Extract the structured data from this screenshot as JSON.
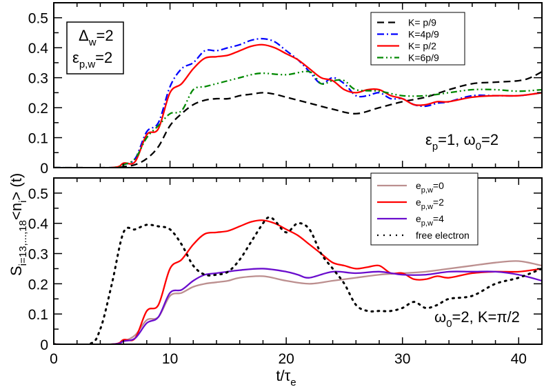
{
  "chart_data": [
    {
      "type": "line",
      "panel": "top",
      "annotation_box": {
        "line1": "Δ",
        "line1_sub": "w",
        "line1_rest": "=2",
        "line2": "ε",
        "line2_sub": "p,w",
        "line2_rest": "=2"
      },
      "annotation": {
        "part1": "ε",
        "sub1": "p",
        "part2": "=1, ω",
        "sub2": "0",
        "part3": "=2"
      },
      "xlim": [
        0,
        42
      ],
      "ylim": [
        0,
        0.55
      ],
      "yticks": [
        "0",
        "0.1",
        "0.2",
        "0.3",
        "0.4",
        "0.5"
      ],
      "legend_position": "top-right",
      "series": [
        {
          "name": "K=  p/9",
          "color": "#000000",
          "dash": "dashed",
          "x": [
            0,
            5,
            6,
            7,
            8,
            9,
            10,
            11,
            12,
            13,
            14,
            15,
            16,
            17,
            18,
            19,
            20,
            22,
            24,
            26,
            28,
            30,
            32,
            34,
            36,
            38,
            40,
            41,
            42
          ],
          "y": [
            0,
            0,
            0.003,
            0.01,
            0.03,
            0.07,
            0.14,
            0.18,
            0.21,
            0.225,
            0.23,
            0.23,
            0.24,
            0.245,
            0.25,
            0.245,
            0.235,
            0.215,
            0.195,
            0.18,
            0.2,
            0.22,
            0.235,
            0.26,
            0.28,
            0.285,
            0.29,
            0.3,
            0.32
          ]
        },
        {
          "name": "K=4p/9",
          "color": "#0000ff",
          "dash": "dash-dot",
          "x": [
            0,
            5,
            6,
            7,
            8,
            9,
            10,
            11,
            12,
            13,
            14,
            15,
            16,
            17,
            18,
            19,
            20,
            21,
            22,
            23,
            24,
            25,
            26,
            27,
            28,
            29,
            30,
            31,
            32,
            33,
            34,
            36,
            38,
            40,
            42
          ],
          "y": [
            0,
            0,
            0.01,
            0.03,
            0.12,
            0.15,
            0.27,
            0.33,
            0.35,
            0.39,
            0.39,
            0.4,
            0.41,
            0.425,
            0.43,
            0.42,
            0.39,
            0.36,
            0.32,
            0.28,
            0.3,
            0.28,
            0.24,
            0.24,
            0.25,
            0.23,
            0.23,
            0.21,
            0.205,
            0.215,
            0.22,
            0.24,
            0.24,
            0.24,
            0.25
          ]
        },
        {
          "name": "K=  p/2",
          "color": "#ff0000",
          "dash": "solid",
          "x": [
            0,
            5,
            6,
            7,
            8,
            9,
            10,
            11,
            12,
            13,
            14,
            15,
            16,
            17,
            18,
            19,
            20,
            21,
            22,
            23,
            24,
            25,
            26,
            27,
            28,
            29,
            30,
            31,
            32,
            33,
            34,
            36,
            38,
            40,
            42
          ],
          "y": [
            0,
            0,
            0.015,
            0.02,
            0.11,
            0.13,
            0.25,
            0.28,
            0.33,
            0.365,
            0.37,
            0.375,
            0.39,
            0.405,
            0.41,
            0.4,
            0.38,
            0.36,
            0.33,
            0.3,
            0.29,
            0.26,
            0.25,
            0.26,
            0.26,
            0.24,
            0.23,
            0.21,
            0.21,
            0.22,
            0.22,
            0.235,
            0.24,
            0.24,
            0.25
          ]
        },
        {
          "name": "K=6p/9",
          "color": "#008800",
          "dash": "dash-dot-dot",
          "x": [
            0,
            5,
            6,
            7,
            8,
            9,
            10,
            11,
            12,
            13,
            14,
            15,
            16,
            17,
            18,
            20,
            22,
            23,
            24,
            25,
            26,
            28,
            30,
            32,
            34,
            36,
            38,
            40,
            42
          ],
          "y": [
            0,
            0,
            0.01,
            0.03,
            0.1,
            0.14,
            0.18,
            0.19,
            0.26,
            0.27,
            0.28,
            0.29,
            0.3,
            0.31,
            0.315,
            0.31,
            0.32,
            0.28,
            0.29,
            0.29,
            0.26,
            0.255,
            0.24,
            0.24,
            0.25,
            0.26,
            0.26,
            0.255,
            0.26
          ]
        }
      ]
    },
    {
      "type": "line",
      "panel": "bottom",
      "annotation": {
        "part1": "ω",
        "sub1": "0",
        "part2": "=2, K=π/2"
      },
      "xlim": [
        0,
        42
      ],
      "ylim": [
        0,
        0.55
      ],
      "xticks": [
        "0",
        "10",
        "20",
        "30",
        "40"
      ],
      "yticks": [
        "0",
        "0.1",
        "0.2",
        "0.3",
        "0.4",
        "0.5"
      ],
      "xlabel": {
        "main": "t/τ",
        "sub": "e"
      },
      "ylabel": {
        "p1": "S",
        "sub": "i=13,...,18",
        "p2": "<n",
        "sub2": "i",
        "p3": "> (t)"
      },
      "legend_position": "top-right",
      "series": [
        {
          "name": "e",
          "name_sub": "p,w",
          "name_rest": "=0",
          "color": "#bc8f8f",
          "dash": "solid",
          "x": [
            0,
            5,
            6,
            7,
            8,
            9,
            10,
            11,
            12,
            13,
            14,
            15,
            16,
            18,
            20,
            22,
            24,
            26,
            28,
            30,
            32,
            34,
            36,
            38,
            40,
            42
          ],
          "y": [
            0,
            0,
            0.01,
            0.03,
            0.08,
            0.09,
            0.16,
            0.17,
            0.19,
            0.2,
            0.205,
            0.21,
            0.22,
            0.225,
            0.21,
            0.2,
            0.21,
            0.22,
            0.23,
            0.235,
            0.24,
            0.25,
            0.26,
            0.27,
            0.275,
            0.26
          ]
        },
        {
          "name": "e",
          "name_sub": "p,w",
          "name_rest": "=2",
          "color": "#ff0000",
          "dash": "solid",
          "x": [
            0,
            5,
            6,
            7,
            8,
            9,
            10,
            11,
            12,
            13,
            14,
            15,
            16,
            17,
            18,
            19,
            20,
            21,
            22,
            23,
            24,
            25,
            26,
            27,
            28,
            29,
            30,
            31,
            32,
            33,
            34,
            36,
            38,
            40,
            42
          ],
          "y": [
            0,
            0,
            0.015,
            0.02,
            0.11,
            0.13,
            0.25,
            0.28,
            0.33,
            0.365,
            0.37,
            0.375,
            0.39,
            0.405,
            0.41,
            0.4,
            0.38,
            0.36,
            0.33,
            0.3,
            0.27,
            0.26,
            0.25,
            0.255,
            0.26,
            0.235,
            0.235,
            0.215,
            0.215,
            0.225,
            0.22,
            0.235,
            0.24,
            0.24,
            0.25
          ]
        },
        {
          "name": "e",
          "name_sub": "p,w",
          "name_rest": "=4",
          "color": "#6a0dcd",
          "dash": "solid",
          "x": [
            0,
            5,
            6,
            7,
            8,
            9,
            10,
            11,
            12,
            13,
            14,
            16,
            18,
            20,
            21,
            22,
            24,
            26,
            28,
            30,
            32,
            34,
            36,
            38,
            40,
            42
          ],
          "y": [
            0,
            0,
            0.01,
            0.02,
            0.07,
            0.09,
            0.17,
            0.18,
            0.21,
            0.23,
            0.235,
            0.245,
            0.25,
            0.24,
            0.23,
            0.22,
            0.24,
            0.235,
            0.24,
            0.23,
            0.23,
            0.24,
            0.24,
            0.24,
            0.23,
            0.21
          ]
        },
        {
          "name": "free electron",
          "color": "#000000",
          "dash": "dotted",
          "x": [
            0,
            3,
            4,
            5,
            6,
            7,
            8,
            9,
            10,
            11,
            12,
            13,
            14,
            15,
            16,
            17,
            18,
            18.5,
            19,
            20,
            21,
            22,
            23,
            24,
            25,
            26,
            27,
            28,
            29,
            30,
            31,
            32,
            33,
            34,
            36,
            38,
            40,
            42
          ],
          "y": [
            0,
            0,
            0.05,
            0.2,
            0.37,
            0.38,
            0.395,
            0.39,
            0.38,
            0.33,
            0.26,
            0.23,
            0.23,
            0.24,
            0.28,
            0.34,
            0.4,
            0.42,
            0.41,
            0.37,
            0.4,
            0.38,
            0.3,
            0.25,
            0.2,
            0.13,
            0.11,
            0.11,
            0.11,
            0.12,
            0.14,
            0.12,
            0.13,
            0.15,
            0.16,
            0.2,
            0.22,
            0.25
          ]
        }
      ]
    }
  ]
}
